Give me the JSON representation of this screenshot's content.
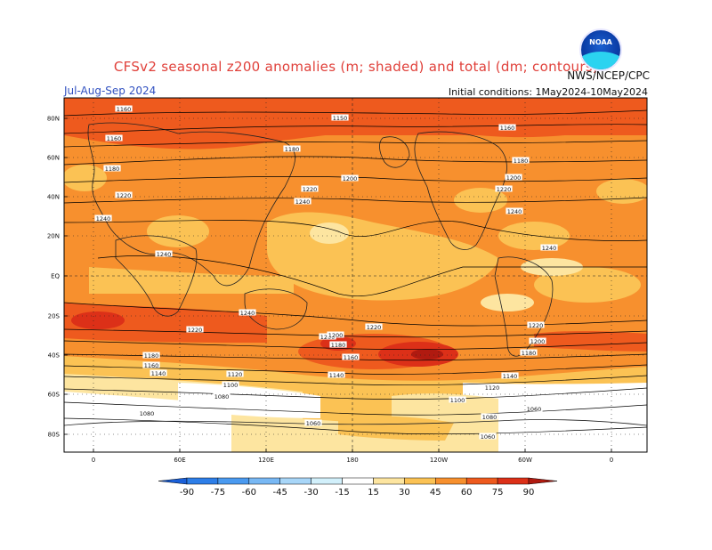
{
  "title": "CFSv2 seasonal z200 anomalies (m; shaded) and total (dm; contours)",
  "season": "Jul-Aug-Sep 2024",
  "agency": "NWS/NCEP/CPC",
  "initial_conditions": "Initial conditions: 1May2024-10May2024",
  "logo": {
    "text": "NOAA"
  },
  "lat_labels": [
    "80N",
    "60N",
    "40N",
    "20N",
    "EQ",
    "20S",
    "40S",
    "60S",
    "80S"
  ],
  "lon_labels": [
    "0",
    "60E",
    "120E",
    "180",
    "120W",
    "60W",
    "0"
  ],
  "colorbar": {
    "ticks": [
      "-90",
      "-75",
      "-60",
      "-45",
      "-30",
      "-15",
      "15",
      "30",
      "45",
      "60",
      "75",
      "90"
    ],
    "colors": [
      "#1a5fd8",
      "#2d7ee8",
      "#4a9af0",
      "#78b8f4",
      "#a8d6f8",
      "#d2f0fb",
      "#ffffff",
      "#fde5a0",
      "#fbc254",
      "#f7902e",
      "#ee5a1e",
      "#dc3018",
      "#b01a10"
    ]
  },
  "contour_labels": [
    "1160",
    "1150",
    "1160",
    "1160",
    "1180",
    "1180",
    "1180",
    "1200",
    "1200",
    "1200",
    "1220",
    "1220",
    "1220",
    "1240",
    "1240",
    "1240",
    "1240",
    "1240",
    "1240",
    "1220",
    "1220",
    "1220",
    "1200",
    "1200",
    "1180",
    "1180",
    "1180",
    "1160",
    "1160",
    "1140",
    "1140",
    "1140",
    "1120",
    "1120",
    "1100",
    "1100",
    "1080",
    "1080",
    "1080",
    "1060",
    "1060",
    "1060"
  ]
}
